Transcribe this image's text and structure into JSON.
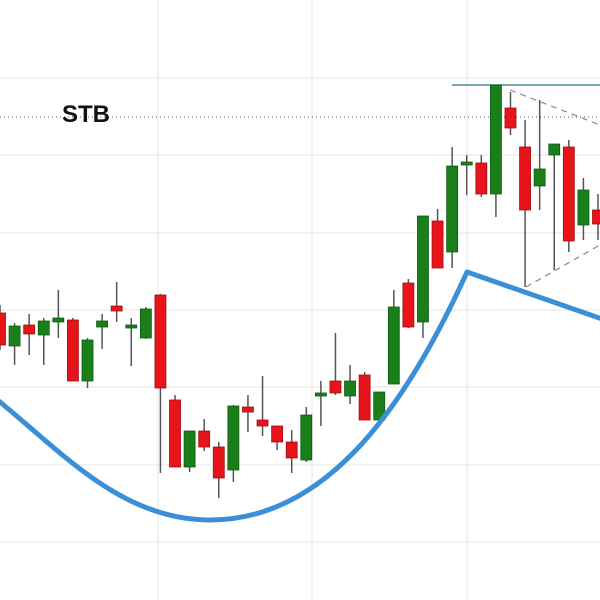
{
  "chart_data": {
    "type": "candlestick",
    "title": "",
    "xlabel": "",
    "ylabel": "",
    "grid": true,
    "annotation_label": "STB",
    "fields": [
      "open",
      "high",
      "low",
      "close"
    ],
    "candles": [
      [
        287,
        295,
        250,
        255
      ],
      [
        254,
        277,
        235,
        274
      ],
      [
        275,
        286,
        245,
        266
      ],
      [
        265,
        282,
        235,
        279
      ],
      [
        278,
        310,
        262,
        282
      ],
      [
        280,
        282,
        219,
        219
      ],
      [
        219,
        262,
        212,
        260
      ],
      [
        273,
        286,
        251,
        279
      ],
      [
        294,
        318,
        278,
        289
      ],
      [
        273,
        282,
        234,
        275
      ],
      [
        262,
        293,
        261,
        291
      ],
      [
        305,
        306,
        127,
        212
      ],
      [
        200,
        205,
        133,
        133
      ],
      [
        133,
        169,
        128,
        169
      ],
      [
        169,
        181,
        149,
        153
      ],
      [
        153,
        158,
        102,
        122
      ],
      [
        130,
        195,
        118,
        194
      ],
      [
        193,
        205,
        168,
        188
      ],
      [
        180,
        224,
        164,
        174
      ],
      [
        174,
        174,
        150,
        158
      ],
      [
        158,
        170,
        127,
        142
      ],
      [
        140,
        193,
        138,
        185
      ],
      [
        205,
        219,
        174,
        207
      ],
      [
        219,
        267,
        205,
        207
      ],
      [
        204,
        235,
        196,
        219
      ],
      [
        225,
        228,
        180,
        180
      ],
      [
        180,
        208,
        177,
        208
      ],
      [
        216,
        310,
        216,
        293
      ],
      [
        317,
        321,
        272,
        273
      ],
      [
        278,
        384,
        262,
        384
      ],
      [
        379,
        391,
        332,
        332
      ],
      [
        348,
        453,
        332,
        434
      ],
      [
        436,
        445,
        405,
        438
      ],
      [
        437,
        445,
        403,
        406
      ],
      [
        406,
        515,
        383,
        515
      ],
      [
        492,
        508,
        465,
        472
      ],
      [
        453,
        480,
        313,
        390
      ],
      [
        414,
        500,
        390,
        431
      ],
      [
        445,
        456,
        330,
        456
      ],
      [
        453,
        460,
        348,
        359
      ],
      [
        375,
        422,
        360,
        410
      ],
      [
        390,
        406,
        360,
        376
      ]
    ],
    "levels": {
      "resistance": 515,
      "dotted_level": 483
    },
    "colors": {
      "up": "#1a7f1a",
      "down": "#e8141c",
      "wick": "#555555",
      "curve": "#3b8fd6",
      "resistance": "#4a8a9a",
      "grid": "#e6e6e6"
    }
  }
}
